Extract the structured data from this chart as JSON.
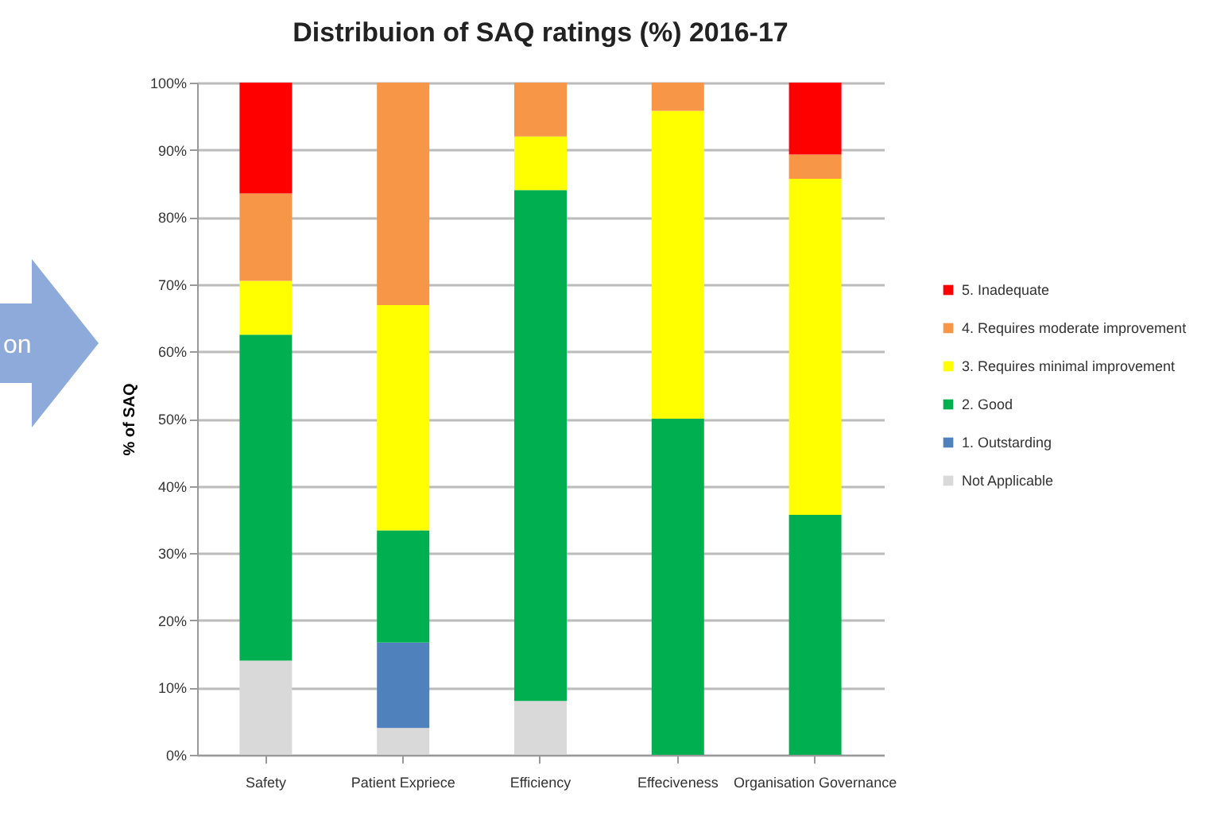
{
  "chart_data": {
    "type": "bar",
    "title": "Distribuion of SAQ ratings (%) 2016-17",
    "ylabel": "% of SAQ",
    "stacked": true,
    "grid": "y",
    "legend": "right",
    "categories": [
      "Safety",
      "Patient Expriece",
      "Efficiency",
      "Effeciveness",
      "Organisation Governance"
    ],
    "ylim": [
      0,
      100
    ],
    "yticks": [
      {
        "value": 0,
        "label": "0%"
      },
      {
        "value": 10,
        "label": "10%"
      },
      {
        "value": 20,
        "label": "20%"
      },
      {
        "value": 30,
        "label": "30%"
      },
      {
        "value": 40,
        "label": "40%"
      },
      {
        "value": 50,
        "label": "50%"
      },
      {
        "value": 60,
        "label": "60%"
      },
      {
        "value": 70,
        "label": "70%"
      },
      {
        "value": 80,
        "label": "80%"
      },
      {
        "value": 90,
        "label": "90%"
      },
      {
        "value": 100,
        "label": "100%"
      }
    ],
    "annotations": [
      "on"
    ],
    "series": [
      {
        "name": "Not Applicable",
        "color": "#d9d9d9",
        "values": [
          14,
          4,
          8,
          null,
          null
        ]
      },
      {
        "name": "1. Outstarding",
        "color": "#4f81bd",
        "values": [
          null,
          12.7,
          null,
          null,
          null
        ]
      },
      {
        "name": "2. Good",
        "color": "#00b050",
        "values": [
          48.5,
          16.7,
          76,
          50,
          35.7
        ]
      },
      {
        "name": "3. Requires minimal improvement",
        "color": "#ffff00",
        "values": [
          8,
          33.5,
          8,
          45.8,
          50
        ]
      },
      {
        "name": "4. Requires moderate improvement",
        "color": "#f79646",
        "values": [
          13,
          33.1,
          8,
          4.2,
          3.6
        ]
      },
      {
        "name": "5. Inadequate",
        "color": "#ff0000",
        "values": [
          16.5,
          null,
          null,
          null,
          10.7
        ]
      }
    ]
  }
}
